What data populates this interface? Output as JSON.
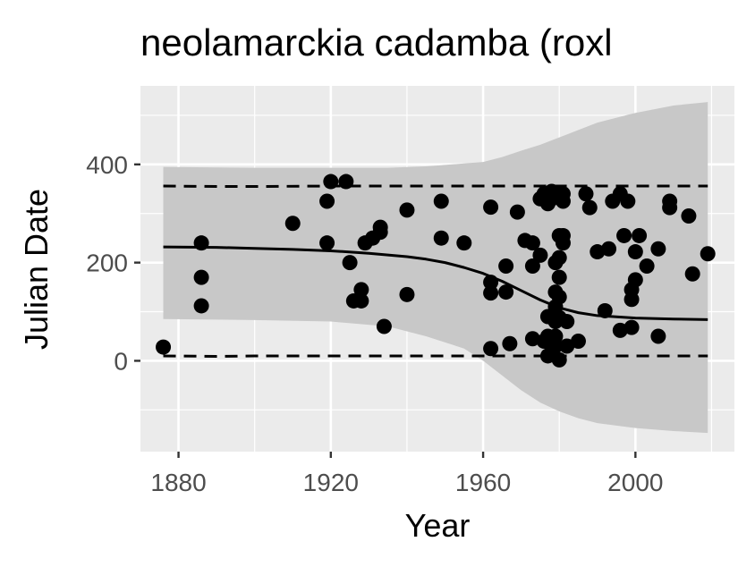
{
  "chart_data": {
    "type": "scatter",
    "title": "neolamarckia cadamba (roxl",
    "xlabel": "Year",
    "ylabel": "Julian Date",
    "xlim": [
      1870,
      2026
    ],
    "ylim": [
      -185,
      560
    ],
    "x_ticks": [
      "1880",
      "1920",
      "1960",
      "2000"
    ],
    "x_tick_values": [
      1880,
      1920,
      1960,
      2000
    ],
    "y_ticks": [
      "0",
      "200",
      "400"
    ],
    "y_tick_values": [
      0,
      200,
      400
    ],
    "grid": true,
    "legend": "none",
    "colors": {
      "panel": "#ebebeb",
      "grid": "#ffffff",
      "ribbon": "#c8c8c8",
      "points": "#000000",
      "lines": "#000000"
    },
    "points": [
      [
        1876,
        28
      ],
      [
        1886,
        240
      ],
      [
        1886,
        170
      ],
      [
        1886,
        112
      ],
      [
        1910,
        280
      ],
      [
        1919,
        325
      ],
      [
        1919,
        240
      ],
      [
        1920,
        365
      ],
      [
        1924,
        365
      ],
      [
        1925,
        200
      ],
      [
        1926,
        122
      ],
      [
        1928,
        145
      ],
      [
        1928,
        122
      ],
      [
        1929,
        240
      ],
      [
        1931,
        250
      ],
      [
        1933,
        262
      ],
      [
        1933,
        272
      ],
      [
        1934,
        70
      ],
      [
        1940,
        307
      ],
      [
        1940,
        135
      ],
      [
        1949,
        325
      ],
      [
        1949,
        250
      ],
      [
        1955,
        240
      ],
      [
        1962,
        313
      ],
      [
        1962,
        160
      ],
      [
        1962,
        138
      ],
      [
        1962,
        25
      ],
      [
        1966,
        193
      ],
      [
        1966,
        140
      ],
      [
        1967,
        35
      ],
      [
        1969,
        303
      ],
      [
        1971,
        245
      ],
      [
        1973,
        240
      ],
      [
        1973,
        193
      ],
      [
        1973,
        45
      ],
      [
        1975,
        330
      ],
      [
        1975,
        215
      ],
      [
        1976,
        340
      ],
      [
        1976,
        40
      ],
      [
        1977,
        320
      ],
      [
        1977,
        90
      ],
      [
        1977,
        50
      ],
      [
        1977,
        10
      ],
      [
        1978,
        345
      ],
      [
        1978,
        330
      ],
      [
        1978,
        18
      ],
      [
        1979,
        340
      ],
      [
        1979,
        200
      ],
      [
        1979,
        140
      ],
      [
        1979,
        110
      ],
      [
        1979,
        80
      ],
      [
        1979,
        50
      ],
      [
        1979,
        30
      ],
      [
        1980,
        255
      ],
      [
        1980,
        210
      ],
      [
        1980,
        170
      ],
      [
        1980,
        130
      ],
      [
        1980,
        88
      ],
      [
        1980,
        2
      ],
      [
        1981,
        340
      ],
      [
        1981,
        325
      ],
      [
        1981,
        255
      ],
      [
        1981,
        240
      ],
      [
        1982,
        80
      ],
      [
        1982,
        30
      ],
      [
        1985,
        40
      ],
      [
        1987,
        340
      ],
      [
        1988,
        312
      ],
      [
        1990,
        222
      ],
      [
        1992,
        102
      ],
      [
        1993,
        228
      ],
      [
        1994,
        325
      ],
      [
        1996,
        340
      ],
      [
        1996,
        62
      ],
      [
        1997,
        255
      ],
      [
        1998,
        325
      ],
      [
        1999,
        145
      ],
      [
        1999,
        125
      ],
      [
        1999,
        68
      ],
      [
        2000,
        222
      ],
      [
        2000,
        165
      ],
      [
        2001,
        255
      ],
      [
        2003,
        193
      ],
      [
        2006,
        228
      ],
      [
        2006,
        50
      ],
      [
        2009,
        325
      ],
      [
        2009,
        312
      ],
      [
        2014,
        295
      ],
      [
        2015,
        177
      ],
      [
        2019,
        218
      ]
    ],
    "trend_line": {
      "x": [
        1876,
        1890,
        1900,
        1910,
        1920,
        1930,
        1940,
        1945,
        1950,
        1955,
        1960,
        1965,
        1970,
        1975,
        1980,
        1985,
        1990,
        2000,
        2010,
        2019
      ],
      "y": [
        232,
        231,
        229,
        227,
        224,
        219,
        212,
        207,
        200,
        190,
        178,
        162,
        143,
        124,
        108,
        98,
        92,
        87,
        85,
        84
      ]
    },
    "upper_dashed": {
      "x": [
        1876,
        1890,
        1900,
        1920,
        1940,
        1960,
        1980,
        2000,
        2019
      ],
      "y": [
        356,
        355,
        355,
        356,
        356,
        356,
        356,
        356,
        356
      ]
    },
    "lower_dashed": {
      "x": [
        1876,
        1890,
        1900,
        1920,
        1940,
        1960,
        1980,
        2000,
        2019
      ],
      "y": [
        10,
        9,
        10,
        10,
        10,
        10,
        10,
        10,
        10
      ]
    },
    "ribbon": {
      "x": [
        1876,
        1900,
        1920,
        1935,
        1945,
        1955,
        1960,
        1965,
        1970,
        1975,
        1980,
        1985,
        1990,
        2000,
        2010,
        2019
      ],
      "upper": [
        395,
        393,
        393,
        393,
        396,
        402,
        405,
        415,
        428,
        440,
        455,
        470,
        485,
        505,
        520,
        527
      ],
      "lower": [
        85,
        83,
        80,
        70,
        50,
        25,
        0,
        -30,
        -60,
        -85,
        -103,
        -117,
        -127,
        -137,
        -143,
        -147
      ]
    }
  }
}
